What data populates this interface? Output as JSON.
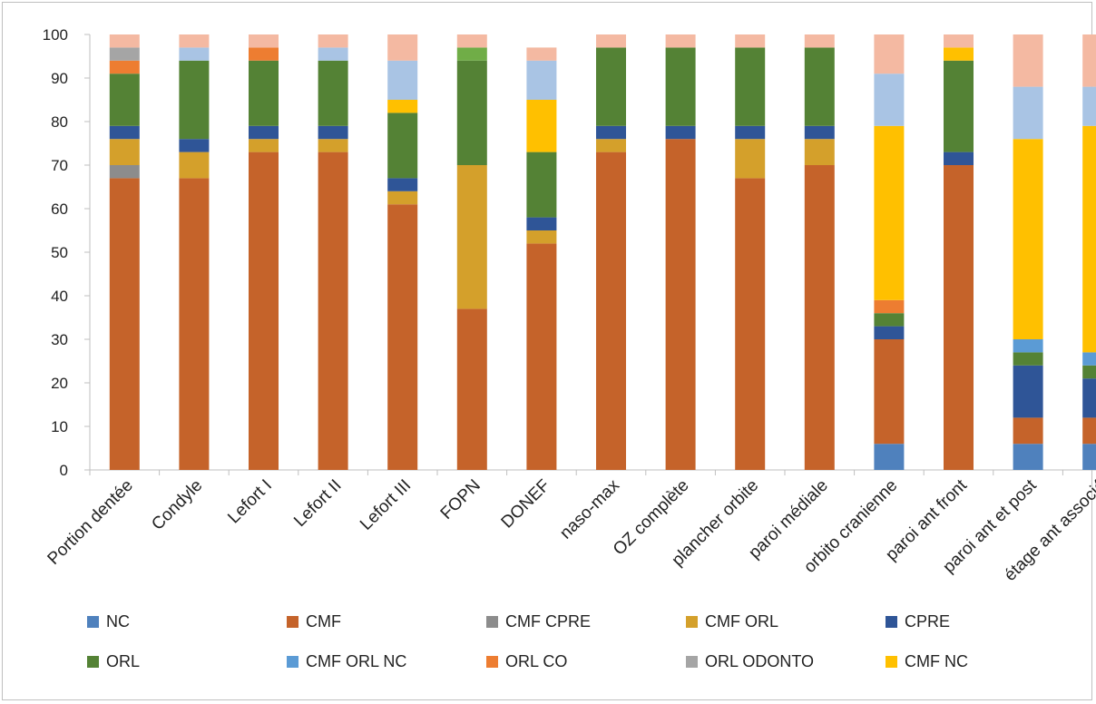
{
  "chart_data": {
    "type": "bar",
    "stacked": true,
    "title": "",
    "xlabel": "",
    "ylabel": "",
    "ylim": [
      0,
      100
    ],
    "yticks": [
      0,
      10,
      20,
      30,
      40,
      50,
      60,
      70,
      80,
      90,
      100
    ],
    "grid": false,
    "legend_position": "bottom",
    "categories": [
      "Portion dentée",
      "Condyle",
      "Lefort I",
      "Lefort II",
      "Lefort III",
      "FOPN",
      "DONEF",
      "naso-max",
      "OZ complète",
      "plancher orbite",
      "paroi médiale",
      "orbito cranienne",
      "paroi ant front",
      "paroi ant et post",
      "étage ant associé"
    ],
    "series": [
      {
        "name": "NC",
        "color": "#4f81bd",
        "values": [
          0,
          0,
          0,
          0,
          0,
          0,
          0,
          0,
          0,
          0,
          0,
          6,
          0,
          6,
          6
        ]
      },
      {
        "name": "CMF",
        "color": "#c5632a",
        "values": [
          67,
          67,
          73,
          73,
          61,
          37,
          52,
          73,
          76,
          67,
          70,
          24,
          70,
          6,
          6
        ]
      },
      {
        "name": "CMF CPRE",
        "color": "#8c8c8c",
        "values": [
          3,
          0,
          0,
          0,
          0,
          0,
          0,
          0,
          0,
          0,
          0,
          0,
          0,
          0,
          0
        ]
      },
      {
        "name": "CMF ORL",
        "color": "#d4a02b",
        "values": [
          6,
          6,
          3,
          3,
          3,
          33,
          3,
          3,
          0,
          9,
          6,
          0,
          0,
          0,
          0
        ]
      },
      {
        "name": "CPRE",
        "color": "#2f5597",
        "values": [
          3,
          3,
          3,
          3,
          3,
          0,
          3,
          3,
          3,
          3,
          3,
          3,
          3,
          12,
          9
        ]
      },
      {
        "name": "ORL",
        "color": "#548235",
        "values": [
          12,
          18,
          15,
          15,
          15,
          24,
          15,
          18,
          18,
          18,
          18,
          3,
          21,
          3,
          3
        ]
      },
      {
        "name": "CMF ORL NC",
        "color": "#5b9bd5",
        "values": [
          0,
          0,
          0,
          0,
          0,
          0,
          0,
          0,
          0,
          0,
          0,
          0,
          0,
          3,
          3
        ]
      },
      {
        "name": "ORL CO",
        "color": "#ed7d31",
        "values": [
          3,
          0,
          3,
          0,
          0,
          0,
          0,
          0,
          0,
          0,
          0,
          3,
          0,
          0,
          0
        ]
      },
      {
        "name": "ORL ODONTO",
        "color": "#a5a5a5",
        "values": [
          3,
          0,
          0,
          0,
          0,
          0,
          0,
          0,
          0,
          0,
          0,
          0,
          0,
          0,
          0
        ]
      },
      {
        "name": "CMF NC",
        "color": "#ffc000",
        "values": [
          0,
          0,
          0,
          0,
          3,
          0,
          12,
          0,
          0,
          0,
          0,
          40,
          3,
          46,
          52
        ]
      },
      {
        "name": "",
        "color": "#a9c4e4",
        "values": [
          0,
          3,
          0,
          3,
          9,
          0,
          9,
          0,
          0,
          0,
          0,
          12,
          0,
          12,
          9
        ]
      },
      {
        "name": "",
        "color": "#70ad47",
        "values": [
          0,
          0,
          0,
          0,
          0,
          3,
          0,
          0,
          0,
          0,
          0,
          0,
          0,
          0,
          0
        ]
      },
      {
        "name": "",
        "color": "#f4b9a2",
        "values": [
          3,
          3,
          3,
          3,
          6,
          3,
          3,
          3,
          3,
          3,
          3,
          9,
          3,
          12,
          12
        ]
      }
    ]
  }
}
